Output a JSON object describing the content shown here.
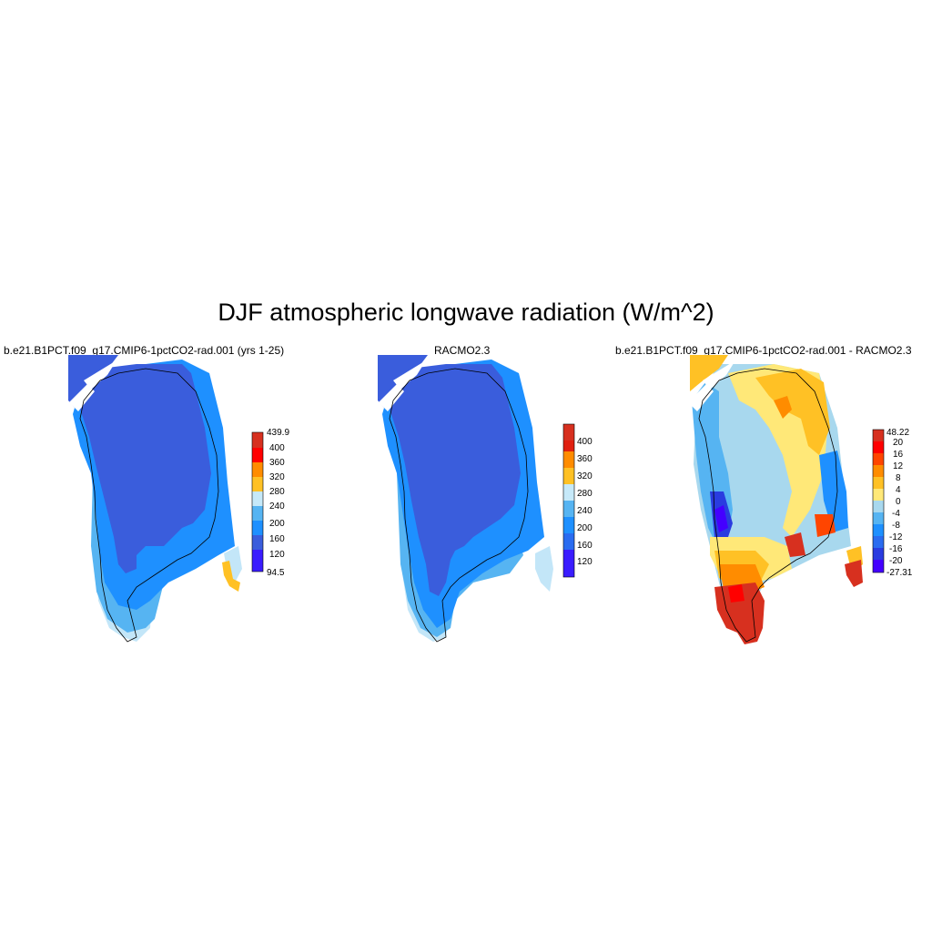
{
  "title": "DJF atmospheric longwave radiation (W/m^2)",
  "colors": {
    "icesheet_dark": "#3a5ddc",
    "icesheet_mid": "#2a6cf0",
    "coast_blue": "#1e90ff",
    "light_blue": "#56b4f2",
    "pale_blue": "#c3e6f8",
    "outline": "#000000"
  },
  "panels": [
    {
      "title": "b.e21.B1PCT.f09_g17.CMIP6-1pctCO2-rad.001 (yrs 1-25)",
      "colorbar": {
        "labels": [
          "439.9",
          "400",
          "360",
          "320",
          "280",
          "240",
          "200",
          "160",
          "120",
          "94.5"
        ],
        "colors": [
          "#d7301f",
          "#ff0000",
          "#ff8c00",
          "#ffc125",
          "#c6e9f9",
          "#56b4f2",
          "#1e90ff",
          "#3a5ddc",
          "#3a1cff"
        ]
      }
    },
    {
      "title": "RACMO2.3",
      "colorbar": {
        "labels": [
          "400",
          "360",
          "320",
          "280",
          "240",
          "200",
          "160",
          "120"
        ],
        "colors": [
          "#d7301f",
          "#e02010",
          "#ff8c00",
          "#ffc125",
          "#c6e9f9",
          "#56b4f2",
          "#1e90ff",
          "#2a6cf0",
          "#3a1cff"
        ]
      }
    },
    {
      "title": "b.e21.B1PCT.f09_g17.CMIP6-1pctCO2-rad.001 - RACMO2.3",
      "colorbar": {
        "labels": [
          "48.22",
          "20",
          "16",
          "12",
          "8",
          "4",
          "0",
          "-4",
          "-8",
          "-12",
          "-16",
          "-20",
          "-27.31"
        ],
        "colors": [
          "#d7301f",
          "#ff0000",
          "#ff4500",
          "#ff8c00",
          "#ffc125",
          "#ffe878",
          "#a8d8ee",
          "#56b4f2",
          "#1e90ff",
          "#2a6cf0",
          "#2a3ce0",
          "#4400ff"
        ]
      }
    }
  ]
}
